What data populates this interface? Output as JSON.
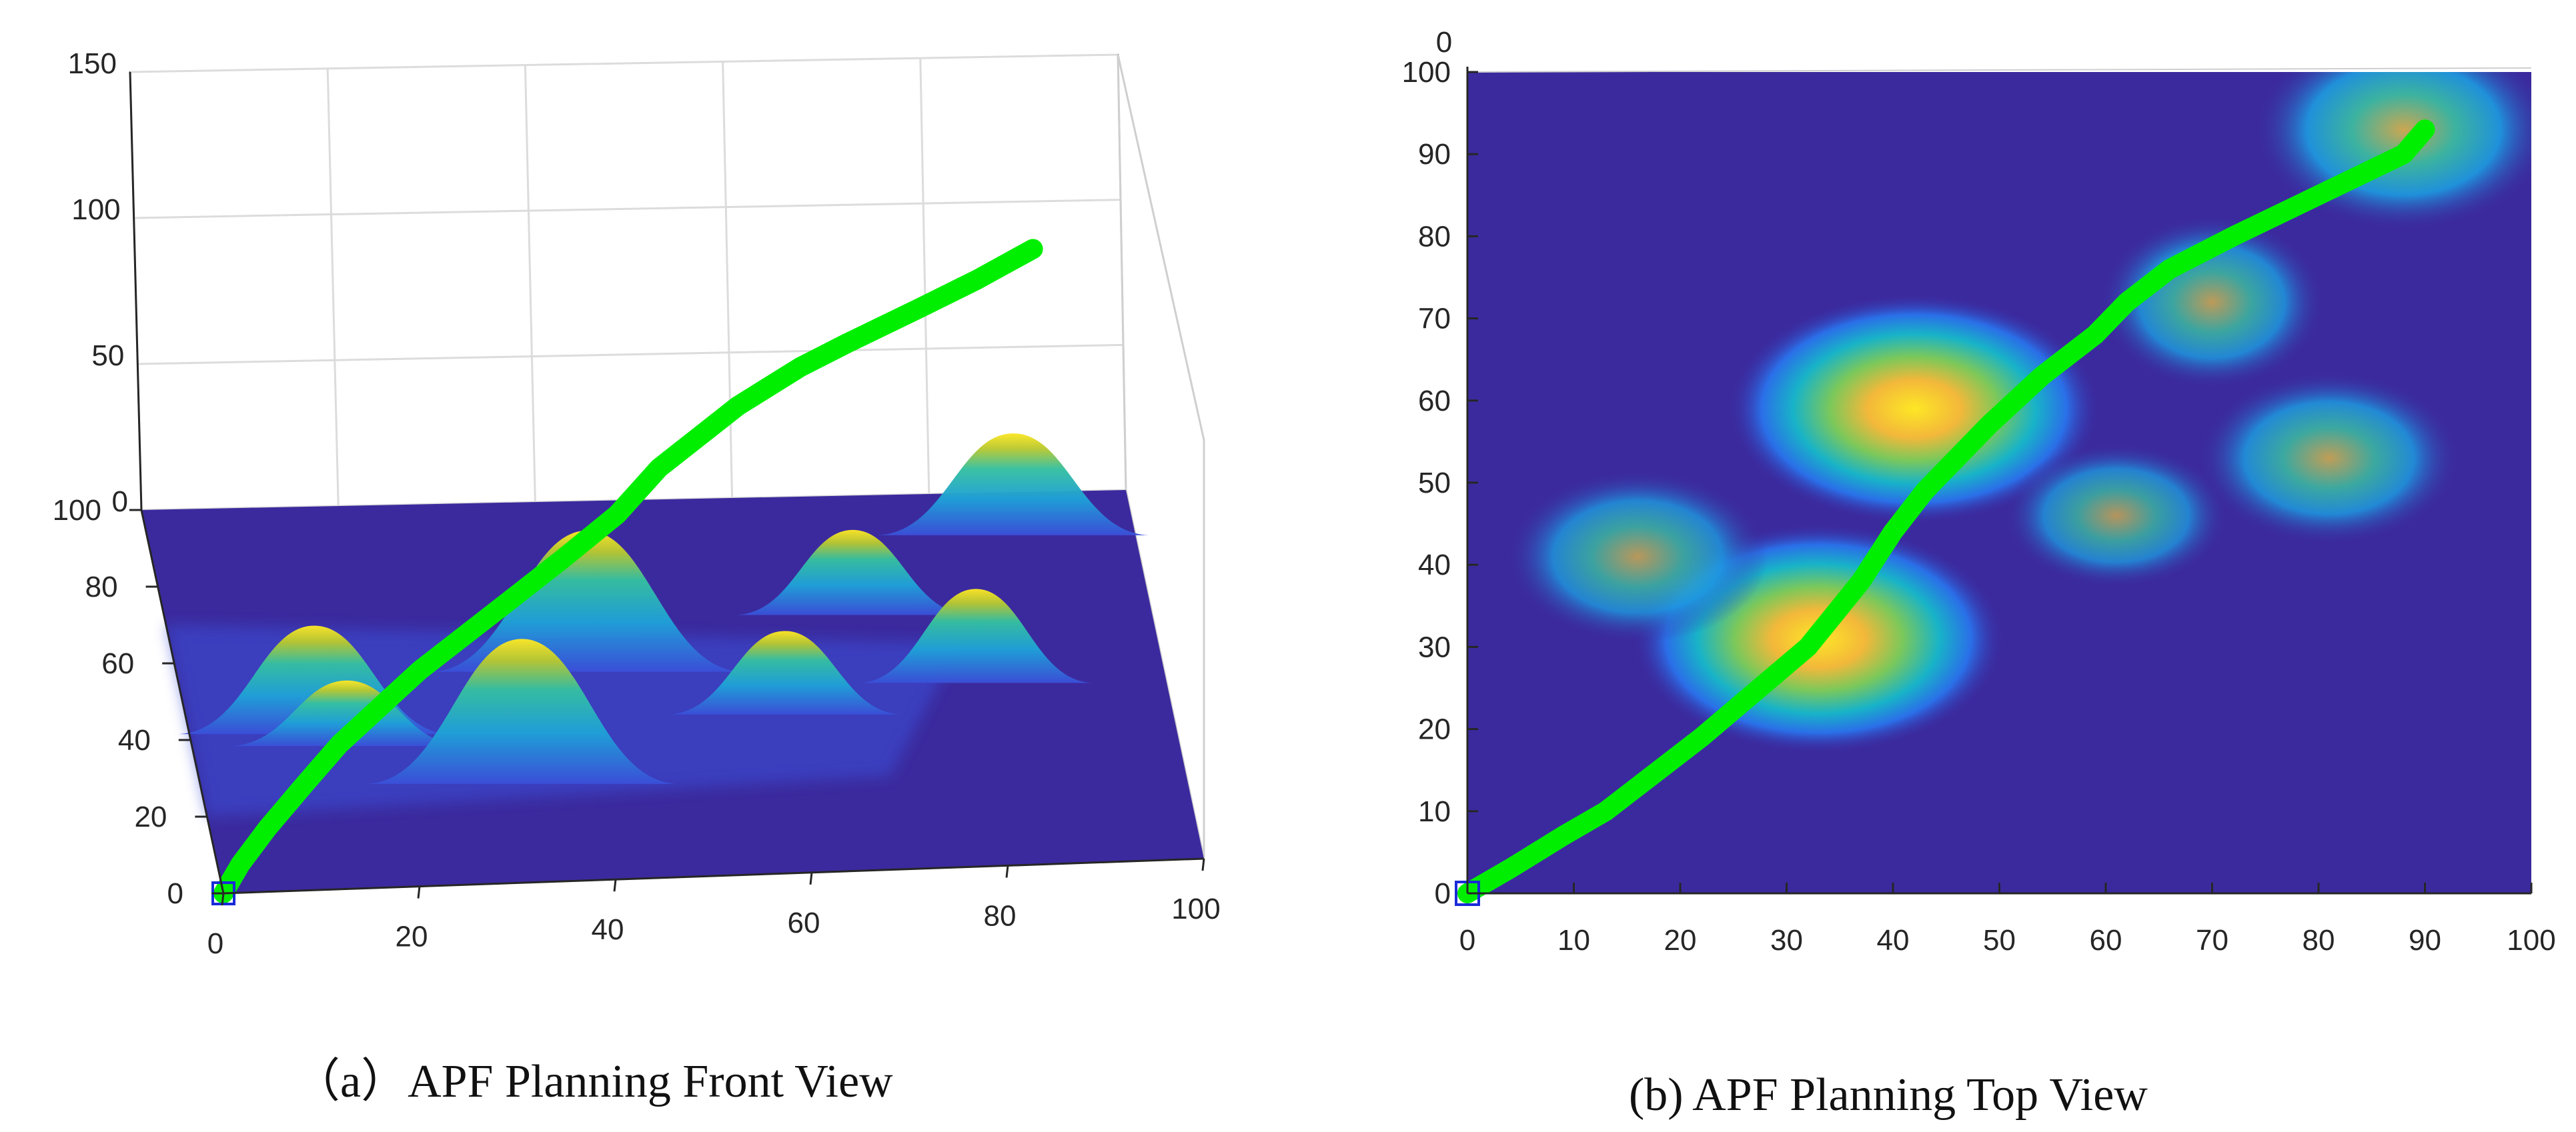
{
  "colors": {
    "background": "#ffffff",
    "surface_low": "#3b2a9e",
    "surface_high": "#fde725",
    "path": "#00ef00",
    "axis": "#262626",
    "grid": "#dcdcdc"
  },
  "chart_data": [
    {
      "type": "surface3d",
      "view": "front",
      "caption": "（a）APF Planning Front View",
      "x_ticks": [
        "0",
        "20",
        "40",
        "60",
        "80",
        "100"
      ],
      "y_ticks": [
        "0",
        "20",
        "40",
        "60",
        "80",
        "100"
      ],
      "z_ticks": [
        "0",
        "50",
        "100",
        "150"
      ],
      "xlim": [
        0,
        100
      ],
      "ylim": [
        0,
        100
      ],
      "zlim": [
        0,
        150
      ],
      "grid": true,
      "colormap": "parula",
      "start_marker": {
        "x": 0,
        "y": 0,
        "shape": "square"
      },
      "surface_peaks": [
        {
          "x": 13,
          "y": 45,
          "height": 33,
          "spread": 7
        },
        {
          "x": 33,
          "y": 31,
          "height": 42,
          "spread": 8
        },
        {
          "x": 42,
          "y": 60,
          "height": 48,
          "spread": 8
        },
        {
          "x": 16,
          "y": 41,
          "height": 18,
          "spread": 6
        },
        {
          "x": 61,
          "y": 46,
          "height": 25,
          "spread": 6
        },
        {
          "x": 70,
          "y": 72,
          "height": 30,
          "spread": 6
        },
        {
          "x": 81,
          "y": 53,
          "height": 30,
          "spread": 6
        },
        {
          "x": 88,
          "y": 93,
          "height": 42,
          "spread": 7
        }
      ],
      "path": {
        "x": [
          0,
          2,
          5,
          9,
          13,
          22,
          32,
          38,
          44,
          49,
          58,
          65,
          70,
          78,
          84,
          90
        ],
        "y": [
          0,
          3,
          6,
          10,
          14,
          24,
          34,
          40,
          47,
          56,
          68,
          76,
          80,
          86,
          89,
          93
        ],
        "z": [
          0,
          5,
          12,
          20,
          28,
          40,
          52,
          60,
          68,
          76,
          88,
          96,
          102,
          112,
          122,
          133
        ]
      }
    },
    {
      "type": "heatmap",
      "view": "top",
      "caption": "(b) APF Planning Top View",
      "x_ticks": [
        "0",
        "10",
        "20",
        "30",
        "40",
        "50",
        "60",
        "70",
        "80",
        "90",
        "100"
      ],
      "y_ticks": [
        "0",
        "10",
        "20",
        "30",
        "40",
        "50",
        "60",
        "70",
        "80",
        "90",
        "100"
      ],
      "corner_label": "0",
      "xlim": [
        0,
        100
      ],
      "ylim": [
        0,
        100
      ],
      "colormap": "parula",
      "start_marker": {
        "x": 0,
        "y": 0,
        "shape": "square"
      },
      "hotspots": [
        {
          "x": 33,
          "y": 31,
          "intensity": 1.0,
          "rx": 10,
          "ry": 8
        },
        {
          "x": 42,
          "y": 59,
          "intensity": 1.0,
          "rx": 10,
          "ry": 8
        },
        {
          "x": 16,
          "y": 41,
          "intensity": 0.55,
          "rx": 7,
          "ry": 6
        },
        {
          "x": 61,
          "y": 46,
          "intensity": 0.5,
          "rx": 6,
          "ry": 5
        },
        {
          "x": 70,
          "y": 72,
          "intensity": 0.6,
          "rx": 6,
          "ry": 6
        },
        {
          "x": 81,
          "y": 53,
          "intensity": 0.65,
          "rx": 7,
          "ry": 6
        },
        {
          "x": 88,
          "y": 93,
          "intensity": 0.8,
          "rx": 8,
          "ry": 7
        }
      ],
      "path": {
        "x": [
          0,
          4,
          9,
          13,
          22,
          32,
          37,
          40,
          43,
          49,
          54,
          59,
          62,
          66,
          72,
          80,
          88,
          90
        ],
        "y": [
          0,
          3,
          7,
          10,
          19,
          30,
          38,
          44,
          49,
          57,
          63,
          68,
          72,
          76,
          80,
          85,
          90,
          93
        ]
      }
    }
  ]
}
